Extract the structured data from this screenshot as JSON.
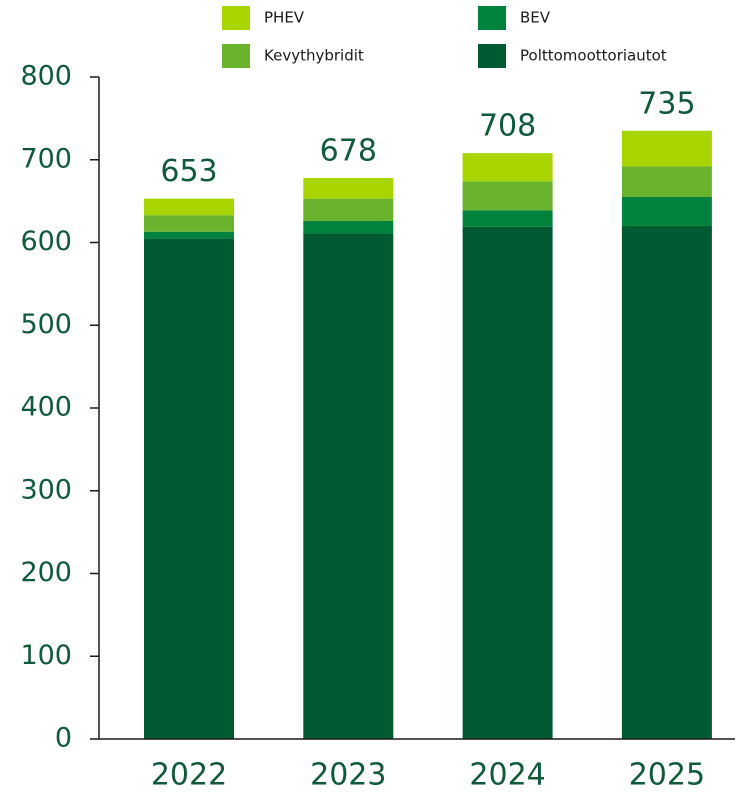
{
  "chart_data": {
    "type": "stacked_bar",
    "categories": [
      "2022",
      "2023",
      "2024",
      "2025"
    ],
    "series": [
      {
        "name": "Polttomoottoriautot",
        "color": "#005a32",
        "values": [
          605,
          611,
          619,
          620
        ]
      },
      {
        "name": "BEV",
        "color": "#00843d",
        "values": [
          8,
          15,
          20,
          35
        ]
      },
      {
        "name": "Kevythybridit",
        "color": "#6ab42d",
        "values": [
          20,
          27,
          35,
          37
        ]
      },
      {
        "name": "PHEV",
        "color": "#a8d400",
        "values": [
          20,
          25,
          34,
          43
        ]
      }
    ],
    "totals": [
      653,
      678,
      708,
      735
    ],
    "ylim": [
      0,
      800
    ],
    "yticks": [
      0,
      100,
      200,
      300,
      400,
      500,
      600,
      700,
      800
    ]
  }
}
